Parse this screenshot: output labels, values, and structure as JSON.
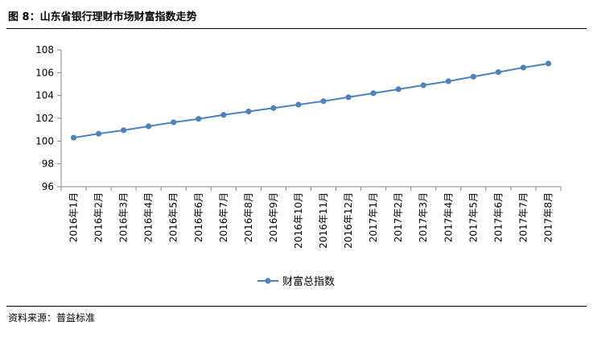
{
  "header": {
    "title": "图 8：山东省银行理财市场财富指数走势"
  },
  "footer": {
    "source": "资料来源：普益标准"
  },
  "chart_data": {
    "type": "line",
    "title": "",
    "xlabel": "",
    "ylabel": "",
    "categories": [
      "2016年1月",
      "2016年2月",
      "2016年3月",
      "2016年4月",
      "2016年5月",
      "2016年6月",
      "2016年7月",
      "2016年8月",
      "2016年9月",
      "2016年10月",
      "2016年11月",
      "2016年12月",
      "2017年1月",
      "2017年2月",
      "2017年3月",
      "2017年4月",
      "2017年5月",
      "2017年6月",
      "2017年7月",
      "2017年8月"
    ],
    "series": [
      {
        "name": "财富总指数",
        "color": "#4f81bd",
        "values": [
          100.3,
          100.65,
          100.95,
          101.3,
          101.65,
          101.95,
          102.3,
          102.6,
          102.9,
          103.2,
          103.5,
          103.85,
          104.2,
          104.55,
          104.9,
          105.25,
          105.65,
          106.05,
          106.45,
          106.8
        ]
      }
    ],
    "ylim": [
      96,
      108
    ],
    "yticks": [
      96,
      98,
      100,
      102,
      104,
      106,
      108
    ],
    "grid": false,
    "legend_position": "bottom"
  }
}
